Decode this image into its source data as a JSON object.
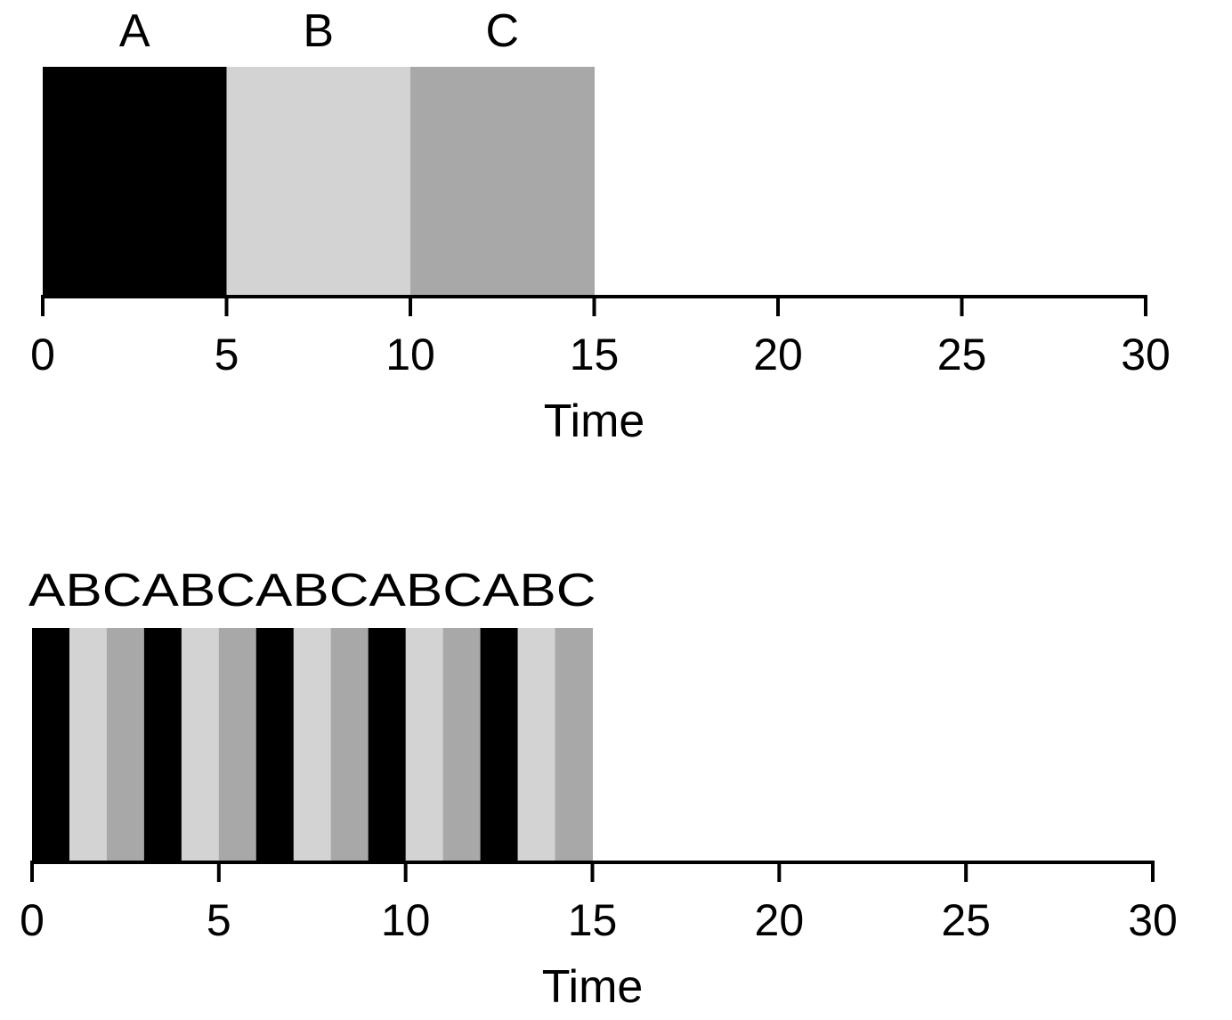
{
  "colors": {
    "A": "#000000",
    "B": "#d3d3d3",
    "C": "#a8a8a8",
    "axis": "#000000",
    "background": "#ffffff"
  },
  "chart_data": [
    {
      "type": "gantt",
      "name": "sequential-schedule",
      "xlabel": "Time",
      "xlim": [
        0,
        30
      ],
      "ticks": [
        0,
        5,
        10,
        15,
        20,
        25,
        30
      ],
      "tick_labels": [
        "0",
        "5",
        "10",
        "15",
        "20",
        "25",
        "30"
      ],
      "segments": [
        {
          "job": "A",
          "start": 0,
          "end": 5
        },
        {
          "job": "B",
          "start": 5,
          "end": 10
        },
        {
          "job": "C",
          "start": 10,
          "end": 15
        }
      ],
      "top_labels": [
        {
          "text": "A",
          "at": 2.5
        },
        {
          "text": "B",
          "at": 7.5
        },
        {
          "text": "C",
          "at": 12.5
        }
      ]
    },
    {
      "type": "gantt",
      "name": "round-robin-schedule",
      "xlabel": "Time",
      "xlim": [
        0,
        30
      ],
      "ticks": [
        0,
        5,
        10,
        15,
        20,
        25,
        30
      ],
      "tick_labels": [
        "0",
        "5",
        "10",
        "15",
        "20",
        "25",
        "30"
      ],
      "segments": [
        {
          "job": "A",
          "start": 0,
          "end": 1
        },
        {
          "job": "B",
          "start": 1,
          "end": 2
        },
        {
          "job": "C",
          "start": 2,
          "end": 3
        },
        {
          "job": "A",
          "start": 3,
          "end": 4
        },
        {
          "job": "B",
          "start": 4,
          "end": 5
        },
        {
          "job": "C",
          "start": 5,
          "end": 6
        },
        {
          "job": "A",
          "start": 6,
          "end": 7
        },
        {
          "job": "B",
          "start": 7,
          "end": 8
        },
        {
          "job": "C",
          "start": 8,
          "end": 9
        },
        {
          "job": "A",
          "start": 9,
          "end": 10
        },
        {
          "job": "B",
          "start": 10,
          "end": 11
        },
        {
          "job": "C",
          "start": 11,
          "end": 12
        },
        {
          "job": "A",
          "start": 12,
          "end": 13
        },
        {
          "job": "B",
          "start": 13,
          "end": 14
        },
        {
          "job": "C",
          "start": 14,
          "end": 15
        }
      ],
      "top_labels": [
        {
          "text": "ABCABCABCABCABC",
          "at": 7.5
        }
      ]
    }
  ]
}
